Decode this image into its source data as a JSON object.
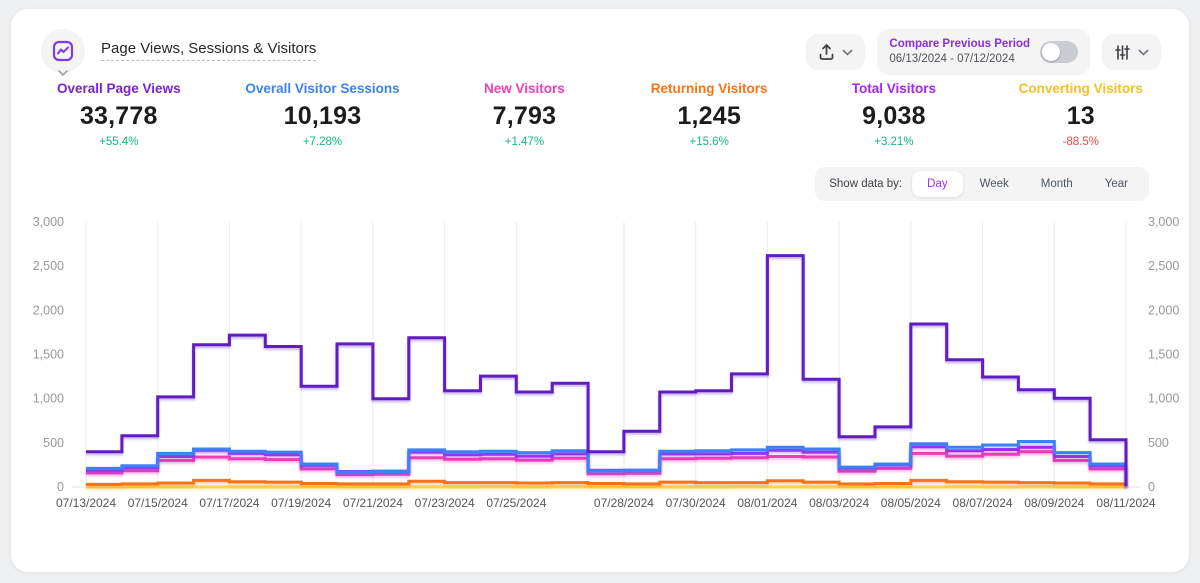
{
  "page": {
    "background": "#eef0f1",
    "card_background": "#ffffff"
  },
  "header": {
    "title": "Page Views, Sessions & Visitors",
    "icon": "trend-chart-icon",
    "accent_color": "#7c3aed"
  },
  "toolbar": {
    "export_button": {
      "icon": "export-icon"
    },
    "compare": {
      "label": "Compare Previous Period",
      "date_range": "06/13/2024 - 07/12/2024",
      "toggle_on": false
    },
    "settings_button": {
      "icon": "sliders-icon"
    }
  },
  "metrics": [
    {
      "label": "Overall Page Views",
      "value": "33,778",
      "change": "+55.4%",
      "direction": "up",
      "color": "#7c22ce"
    },
    {
      "label": "Overall Visitor Sessions",
      "value": "10,193",
      "change": "+7.28%",
      "direction": "up",
      "color": "#3b82f6"
    },
    {
      "label": "New Visitors",
      "value": "7,793",
      "change": "+1.47%",
      "direction": "up",
      "color": "#f23db4"
    },
    {
      "label": "Returning Visitors",
      "value": "1,245",
      "change": "+15.6%",
      "direction": "up",
      "color": "#f97316"
    },
    {
      "label": "Total Visitors",
      "value": "9,038",
      "change": "+3.21%",
      "direction": "up",
      "color": "#a822f0"
    },
    {
      "label": "Converting Visitors",
      "value": "13",
      "change": "-88.5%",
      "direction": "down",
      "color": "#fbbf24"
    }
  ],
  "change_colors": {
    "up": "#10b981",
    "down": "#ef4444"
  },
  "show_data_by": {
    "label": "Show data by:",
    "options": [
      "Day",
      "Week",
      "Month",
      "Year"
    ],
    "selected": "Day"
  },
  "chart_data": {
    "type": "line",
    "step": true,
    "grid": "vertical",
    "ylim": [
      0,
      3000
    ],
    "y_ticks": [
      {
        "value": 3000,
        "label": "3,000"
      },
      {
        "value": 2500,
        "label": "2,500"
      },
      {
        "value": 2000,
        "label": "2,000"
      },
      {
        "value": 1500,
        "label": "1,500"
      },
      {
        "value": 1000,
        "label": "1,000"
      },
      {
        "value": 500,
        "label": "500"
      },
      {
        "value": 0,
        "label": "0"
      }
    ],
    "x": [
      "07/13/2024",
      "07/14/2024",
      "07/15/2024",
      "07/16/2024",
      "07/17/2024",
      "07/18/2024",
      "07/19/2024",
      "07/20/2024",
      "07/21/2024",
      "07/22/2024",
      "07/23/2024",
      "07/24/2024",
      "07/25/2024",
      "07/26/2024",
      "07/27/2024",
      "07/28/2024",
      "07/29/2024",
      "07/30/2024",
      "07/31/2024",
      "08/01/2024",
      "08/02/2024",
      "08/03/2024",
      "08/04/2024",
      "08/05/2024",
      "08/06/2024",
      "08/07/2024",
      "08/08/2024",
      "08/09/2024",
      "08/10/2024",
      "08/11/2024"
    ],
    "x_tick_indices": [
      0,
      2,
      4,
      6,
      8,
      10,
      12,
      15,
      17,
      19,
      21,
      23,
      25,
      27,
      29
    ],
    "series": [
      {
        "key": "converting_visitors",
        "name": "Converting Visitors",
        "color": "#fcd34d",
        "values": [
          0,
          1,
          0,
          1,
          0,
          0,
          1,
          0,
          0,
          1,
          0,
          1,
          0,
          1,
          0,
          1,
          0,
          0,
          1,
          1,
          0,
          0,
          0,
          1,
          1,
          0,
          1,
          0,
          1,
          0
        ]
      },
      {
        "key": "returning_visitors",
        "name": "Returning Visitors",
        "color": "#f97316",
        "values": [
          30,
          35,
          45,
          75,
          60,
          55,
          40,
          35,
          35,
          65,
          50,
          50,
          45,
          50,
          40,
          35,
          55,
          50,
          50,
          70,
          55,
          35,
          40,
          75,
          60,
          55,
          50,
          45,
          35,
          25
        ]
      },
      {
        "key": "new_visitors",
        "name": "New Visitors",
        "color": "#ed3eb4",
        "values": [
          160,
          185,
          300,
          340,
          320,
          310,
          205,
          140,
          145,
          330,
          315,
          320,
          305,
          325,
          150,
          155,
          320,
          325,
          330,
          345,
          340,
          180,
          210,
          380,
          350,
          370,
          400,
          300,
          205,
          195
        ]
      },
      {
        "key": "total_visitors",
        "name": "Total Visitors",
        "color": "#a826f0",
        "values": [
          190,
          220,
          345,
          415,
          380,
          365,
          245,
          175,
          180,
          395,
          365,
          370,
          350,
          375,
          190,
          190,
          375,
          375,
          380,
          415,
          395,
          215,
          250,
          455,
          410,
          425,
          450,
          345,
          240,
          220
        ]
      },
      {
        "key": "visitor_sessions",
        "name": "Overall Visitor Sessions",
        "color": "#3b82f6",
        "values": [
          210,
          240,
          380,
          430,
          405,
          395,
          260,
          170,
          175,
          420,
          400,
          405,
          390,
          410,
          185,
          190,
          405,
          410,
          420,
          450,
          430,
          225,
          260,
          490,
          450,
          475,
          515,
          390,
          260,
          250
        ]
      },
      {
        "key": "page_views",
        "name": "Overall Page Views",
        "color": "#5f1dc2",
        "values": [
          400,
          580,
          1020,
          1610,
          1720,
          1590,
          1140,
          1620,
          1000,
          1690,
          1090,
          1255,
          1075,
          1175,
          400,
          630,
          1075,
          1090,
          1280,
          2620,
          1220,
          570,
          680,
          1845,
          1440,
          1245,
          1100,
          1005,
          535,
          530
        ]
      }
    ]
  }
}
